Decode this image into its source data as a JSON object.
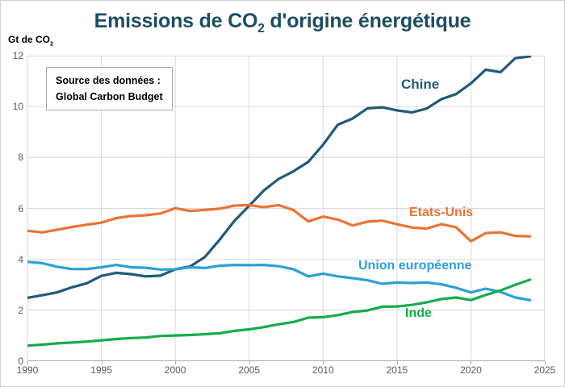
{
  "window": {
    "background": "#ffffff",
    "border_color": "#cfcfcf"
  },
  "header": {
    "title": {
      "text_before_sub": "Emissions de CO",
      "subscript": "2",
      "text_after_sub": " d'origine énergétique",
      "color": "#1c4e63"
    }
  },
  "axes": {
    "y_label": {
      "text_before_sub": "Gt de CO",
      "subscript": "2"
    },
    "tick_color": "#595959",
    "grid_color": "#d9d9d9",
    "axis_line_color": "#ababab"
  },
  "source_box": {
    "line1": "Source des données :",
    "line2": "Global Carbon Budget"
  },
  "chart_data": {
    "type": "line",
    "title": "Emissions de CO2 d'origine énergétique",
    "ylabel": "Gt de CO2",
    "source": "Source des données : Global Carbon Budget",
    "grid": true,
    "legend_position": "inline-labels-near-lines",
    "xlim": [
      1990,
      2025
    ],
    "ylim": [
      0,
      12
    ],
    "x_ticks": [
      1990,
      1995,
      2000,
      2005,
      2010,
      2015,
      2020,
      2025
    ],
    "y_ticks": [
      0,
      2,
      4,
      6,
      8,
      10,
      12
    ],
    "x": [
      1990,
      1991,
      1992,
      1993,
      1994,
      1995,
      1996,
      1997,
      1998,
      1999,
      2000,
      2001,
      2002,
      2003,
      2004,
      2005,
      2006,
      2007,
      2008,
      2009,
      2010,
      2011,
      2012,
      2013,
      2014,
      2015,
      2016,
      2017,
      2018,
      2019,
      2020,
      2021,
      2022,
      2023,
      2024
    ],
    "series": [
      {
        "id": "chine",
        "name": "Chine",
        "color": "#1f5b78",
        "values": [
          2.49,
          2.59,
          2.7,
          2.9,
          3.06,
          3.35,
          3.47,
          3.42,
          3.33,
          3.36,
          3.61,
          3.72,
          4.09,
          4.77,
          5.51,
          6.1,
          6.71,
          7.16,
          7.46,
          7.83,
          8.5,
          9.29,
          9.53,
          9.93,
          9.97,
          9.85,
          9.77,
          9.92,
          10.29,
          10.49,
          10.91,
          11.45,
          11.35,
          11.9,
          11.97
        ]
      },
      {
        "id": "etats-unis",
        "name": "Etats-Unis",
        "color": "#ec7233",
        "values": [
          5.12,
          5.06,
          5.16,
          5.27,
          5.36,
          5.44,
          5.62,
          5.7,
          5.73,
          5.8,
          6.01,
          5.9,
          5.94,
          5.99,
          6.11,
          6.13,
          6.05,
          6.13,
          5.93,
          5.49,
          5.68,
          5.56,
          5.33,
          5.48,
          5.52,
          5.38,
          5.25,
          5.21,
          5.38,
          5.26,
          4.71,
          5.03,
          5.06,
          4.92,
          4.9
        ]
      },
      {
        "id": "union-europeenne",
        "name": "Union européenne",
        "color": "#2d9fd9",
        "values": [
          3.9,
          3.85,
          3.71,
          3.62,
          3.62,
          3.69,
          3.78,
          3.69,
          3.67,
          3.6,
          3.61,
          3.69,
          3.66,
          3.75,
          3.78,
          3.77,
          3.78,
          3.73,
          3.61,
          3.33,
          3.44,
          3.33,
          3.26,
          3.18,
          3.04,
          3.09,
          3.07,
          3.09,
          3.02,
          2.88,
          2.7,
          2.85,
          2.72,
          2.5,
          2.4
        ]
      },
      {
        "id": "inde",
        "name": "Inde",
        "color": "#12ad4b",
        "values": [
          0.61,
          0.65,
          0.7,
          0.73,
          0.77,
          0.82,
          0.87,
          0.91,
          0.93,
          0.99,
          1.01,
          1.03,
          1.06,
          1.1,
          1.19,
          1.25,
          1.34,
          1.45,
          1.54,
          1.71,
          1.73,
          1.81,
          1.93,
          1.99,
          2.14,
          2.15,
          2.21,
          2.31,
          2.44,
          2.5,
          2.4,
          2.6,
          2.78,
          3.0,
          3.2
        ]
      }
    ]
  }
}
